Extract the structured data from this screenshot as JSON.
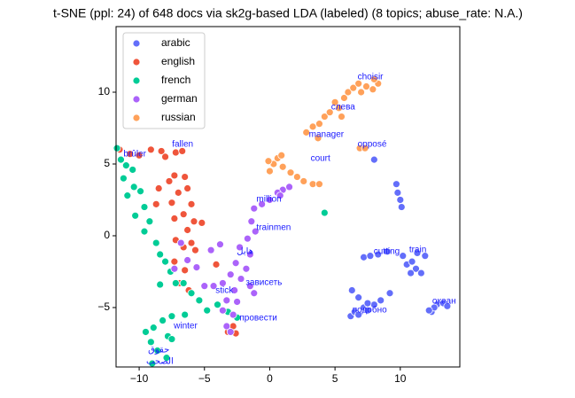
{
  "chart_data": {
    "type": "scatter",
    "title": "t-SNE (ppl: 24) of 648 docs via sk2g-based LDA (labeled) (8 topics; abuse_rate: N.A.)",
    "xlim": [
      -11.77,
      14.56
    ],
    "ylim": [
      -9.14,
      14.57
    ],
    "xticks": [
      {
        "value": -10,
        "label": "−10"
      },
      {
        "value": -5,
        "label": "−5"
      },
      0,
      5,
      10
    ],
    "yticks": [
      {
        "value": -5,
        "label": "−5"
      },
      0,
      5,
      10
    ],
    "legend": "upper left",
    "series": [
      {
        "name": "arabic",
        "color": "#636efa",
        "x": [
          6.2,
          6.5,
          6.8,
          7.2,
          7.5,
          8,
          8.5,
          6.3,
          6.8,
          7.2,
          7.7,
          8.3,
          9.0,
          10.2,
          10.5,
          10.9,
          11.2,
          11.6,
          10.8,
          11.9,
          11.3,
          12.4,
          12.8,
          13.3,
          13.6,
          12.6,
          9.7,
          9.8,
          10.0,
          10.1,
          8.0,
          9.2,
          7.5,
          12.2
        ],
        "y": [
          -5.6,
          -5.3,
          -5.5,
          -5.0,
          -5.2,
          -4.8,
          -4.5,
          -3.8,
          -4.3,
          -1.5,
          -1.4,
          -1.3,
          -1.1,
          -1.4,
          -2.0,
          -1.8,
          -2.3,
          -2.6,
          -2.6,
          -1.4,
          -1.2,
          -5.3,
          -4.8,
          -4.7,
          -4.9,
          -5.0,
          3.6,
          3.0,
          2.5,
          2.0,
          5.3,
          -4.0,
          -4.7,
          -5.2
        ]
      },
      {
        "name": "english",
        "color": "#ef553b",
        "x": [
          -11.5,
          -10.7,
          -10.0,
          -9.1,
          -8.3,
          -8.0,
          -7.2,
          -6.7,
          -7.3,
          -6.5,
          -7.7,
          -8.5,
          -7.0,
          -6.3,
          -7.5,
          -8.7,
          -6.0,
          -6.6,
          -7.3,
          -5.8,
          -5.2,
          -6.3,
          -7.2,
          -6.6,
          -6.0,
          -7.3,
          -6.5,
          -6.9,
          -6.2,
          -2.8,
          -2.6,
          -3.2,
          -5.7,
          -4.1
        ],
        "y": [
          6.0,
          5.7,
          5.6,
          6.0,
          5.9,
          5.5,
          5.8,
          5.9,
          4.2,
          4.1,
          3.8,
          3.3,
          3.0,
          3.3,
          2.3,
          2.2,
          2.2,
          1.5,
          1.2,
          1.0,
          0.9,
          0.4,
          -0.3,
          -0.8,
          -0.5,
          -1.8,
          -2.4,
          -3.3,
          -3.8,
          -6.3,
          -6.8,
          -6.7,
          -1.0,
          -2.0
        ]
      },
      {
        "name": "french",
        "color": "#00cc96",
        "x": [
          -11.7,
          -11.4,
          -11.0,
          -10.5,
          -11.2,
          -10.4,
          -9.9,
          -10.9,
          -9.6,
          -10.3,
          -9.2,
          -9.6,
          -8.7,
          -8.4,
          -8.0,
          -7.6,
          -7.2,
          -8.4,
          -6.6,
          -6.0,
          -5.4,
          -4.8,
          -4.0,
          -6.5,
          -7.5,
          -8.2,
          -8.9,
          -7.8,
          -9.5,
          -9.1,
          -8.6,
          -7.9,
          -9.0,
          -7.5,
          4.2,
          -2.5,
          -3.2
        ],
        "y": [
          6.1,
          5.3,
          4.9,
          4.6,
          4.0,
          3.4,
          3.1,
          2.8,
          2.0,
          1.4,
          1.0,
          0.3,
          -0.5,
          -1.3,
          -1.8,
          -2.5,
          -3.3,
          -3.4,
          -3.3,
          -4.0,
          -4.5,
          -5.2,
          -4.8,
          -5.5,
          -5.6,
          -5.9,
          -6.4,
          -7.0,
          -6.7,
          -7.4,
          -8.0,
          -8.5,
          -8.9,
          -7.2,
          1.6,
          -5.7,
          -5.3
        ]
      },
      {
        "name": "german",
        "color": "#ab63fa",
        "x": [
          1.5,
          1.0,
          0.6,
          0.0,
          -0.6,
          -1.2,
          -1.4,
          -1.1,
          -1.7,
          -2.3,
          -1.5,
          -2.6,
          -1.8,
          -3.0,
          -2.2,
          -3.6,
          -2.7,
          -4.3,
          -5.0,
          -3.3,
          -2.5,
          -1.5,
          -3.6,
          -2.8,
          -3.3,
          -3.0,
          -1.2,
          -6.8,
          -5.6,
          -4.5,
          -7.3,
          -6.3,
          -3.8,
          0.8
        ],
        "y": [
          3.4,
          3.2,
          3.0,
          2.5,
          2.2,
          1.9,
          1.0,
          0.3,
          -0.2,
          -0.8,
          -1.3,
          -1.9,
          -2.3,
          -2.7,
          -3.0,
          -3.3,
          -3.8,
          -3.5,
          -3.5,
          -4.5,
          -4.6,
          -3.5,
          -5.2,
          -5.5,
          -6.3,
          -6.7,
          -4.0,
          -0.5,
          -2.2,
          -1.0,
          -2.3,
          -1.7,
          -0.6,
          2.8
        ]
      },
      {
        "name": "russian",
        "color": "#ffa15a",
        "x": [
          0.0,
          0.3,
          0.6,
          0.9,
          -0.1,
          1.0,
          1.6,
          2.1,
          2.6,
          3.3,
          3.8,
          2.8,
          3.3,
          3.8,
          4.2,
          4.6,
          5.3,
          5.0,
          5.7,
          6.0,
          6.4,
          6.8,
          7.4,
          7.9,
          8.3,
          8.0,
          7.0,
          6.9,
          7.3,
          5.5,
          3.7
        ],
        "y": [
          4.5,
          5.0,
          5.4,
          5.6,
          5.2,
          4.8,
          4.4,
          4.1,
          3.8,
          3.6,
          3.6,
          7.2,
          7.6,
          7.8,
          8.3,
          8.6,
          8.9,
          9.3,
          9.6,
          10.0,
          10.3,
          10.6,
          10.4,
          10.2,
          10.6,
          10.9,
          10.0,
          6.1,
          6.1,
          8.3,
          6.8
        ]
      }
    ],
    "annotations": [
      {
        "text": "choisir",
        "x": 6.73,
        "y": 11.05
      },
      {
        "text": "слева",
        "x": 4.7,
        "y": 8.95
      },
      {
        "text": "manager",
        "x": 3.0,
        "y": 7.04
      },
      {
        "text": "opposé",
        "x": 6.73,
        "y": 6.36
      },
      {
        "text": "court",
        "x": 3.13,
        "y": 5.37
      },
      {
        "text": "fallen",
        "x": -7.48,
        "y": 6.36
      },
      {
        "text": "brûler",
        "x": -11.2,
        "y": 5.68
      },
      {
        "text": "million",
        "x": -1.02,
        "y": 2.53
      },
      {
        "text": "trainmen",
        "x": -1.02,
        "y": 0.56
      },
      {
        "text": "هابل",
        "x": -2.52,
        "y": -1.11
      },
      {
        "text": "cutting",
        "x": 7.96,
        "y": -1.11
      },
      {
        "text": "train",
        "x": 10.68,
        "y": -0.99
      },
      {
        "text": "зависеть",
        "x": -1.84,
        "y": -3.27
      },
      {
        "text": "stick",
        "x": -4.15,
        "y": -3.83
      },
      {
        "text": "океан",
        "x": 12.45,
        "y": -4.57
      },
      {
        "text": "подобно",
        "x": 6.33,
        "y": -5.19
      },
      {
        "text": "провести",
        "x": -2.31,
        "y": -5.74
      },
      {
        "text": "winter",
        "x": -7.35,
        "y": -6.3
      },
      {
        "text": "حقوق",
        "x": -9.32,
        "y": -7.96
      },
      {
        "text": "الصحب",
        "x": -9.46,
        "y": -8.77
      }
    ]
  }
}
